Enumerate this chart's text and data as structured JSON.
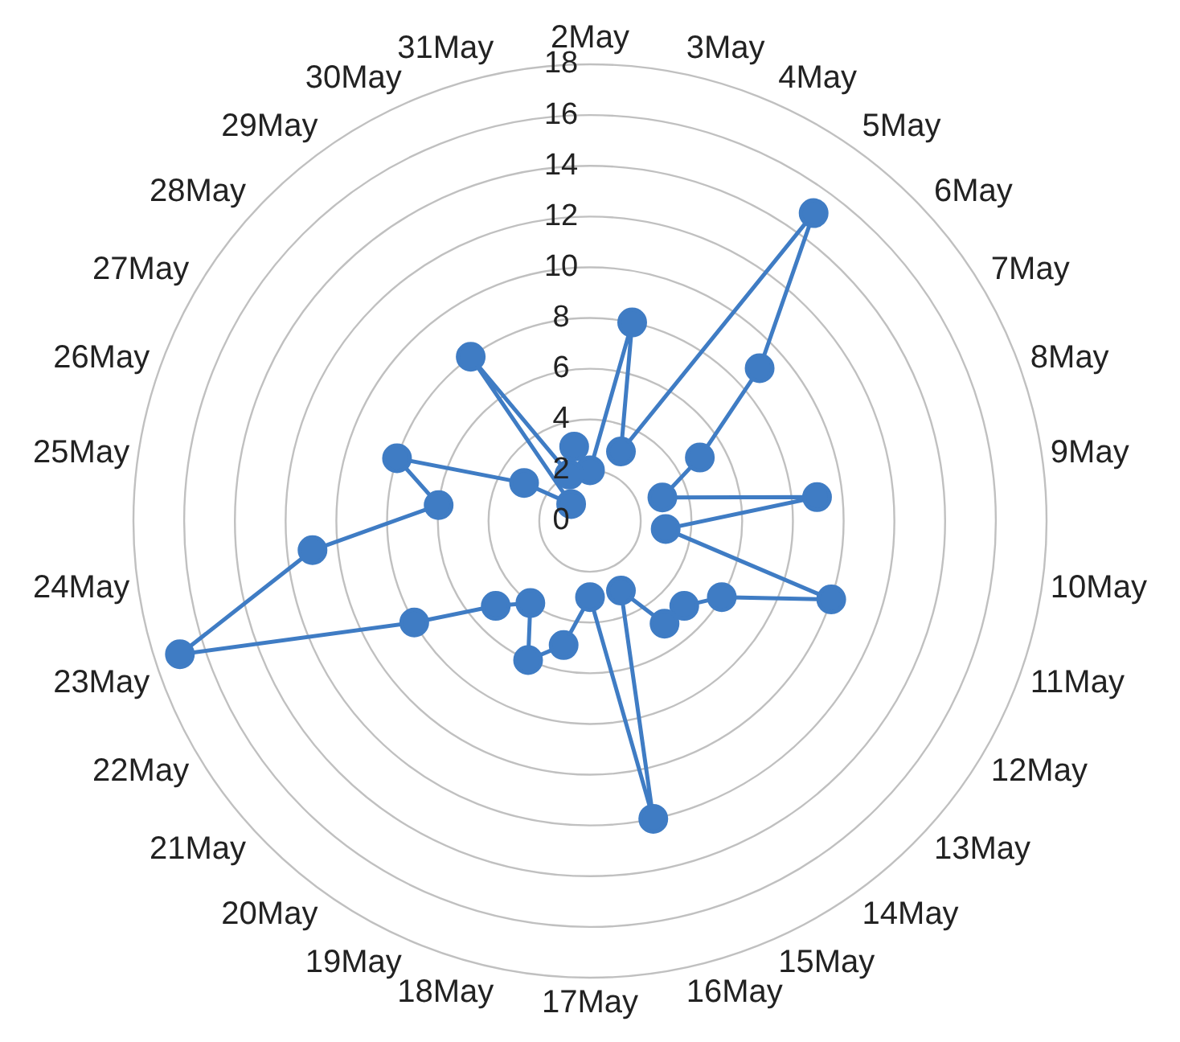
{
  "chart_data": {
    "type": "radar",
    "categories": [
      "2May",
      "3May",
      "4May",
      "5May",
      "6May",
      "7May",
      "8May",
      "9May",
      "10May",
      "11May",
      "12May",
      "13May",
      "14May",
      "15May",
      "16May",
      "17May",
      "18May",
      "19May",
      "20May",
      "21May",
      "22May",
      "23May",
      "24May",
      "25May",
      "26May",
      "27May",
      "28May",
      "29May",
      "30May",
      "31May"
    ],
    "series": [
      {
        "color": "#3f7cc4",
        "values": [
          2,
          8,
          3,
          15,
          9,
          5,
          3,
          9,
          3,
          10,
          6,
          5,
          5,
          3,
          12,
          3,
          5,
          6,
          4,
          5,
          8,
          17,
          11,
          6,
          8,
          3,
          1,
          8,
          2,
          3
        ]
      }
    ],
    "ylim": [
      0,
      18
    ],
    "yticks": [
      0,
      2,
      4,
      6,
      8,
      10,
      12,
      14,
      16,
      18
    ],
    "grid": true,
    "marker": "circle"
  }
}
